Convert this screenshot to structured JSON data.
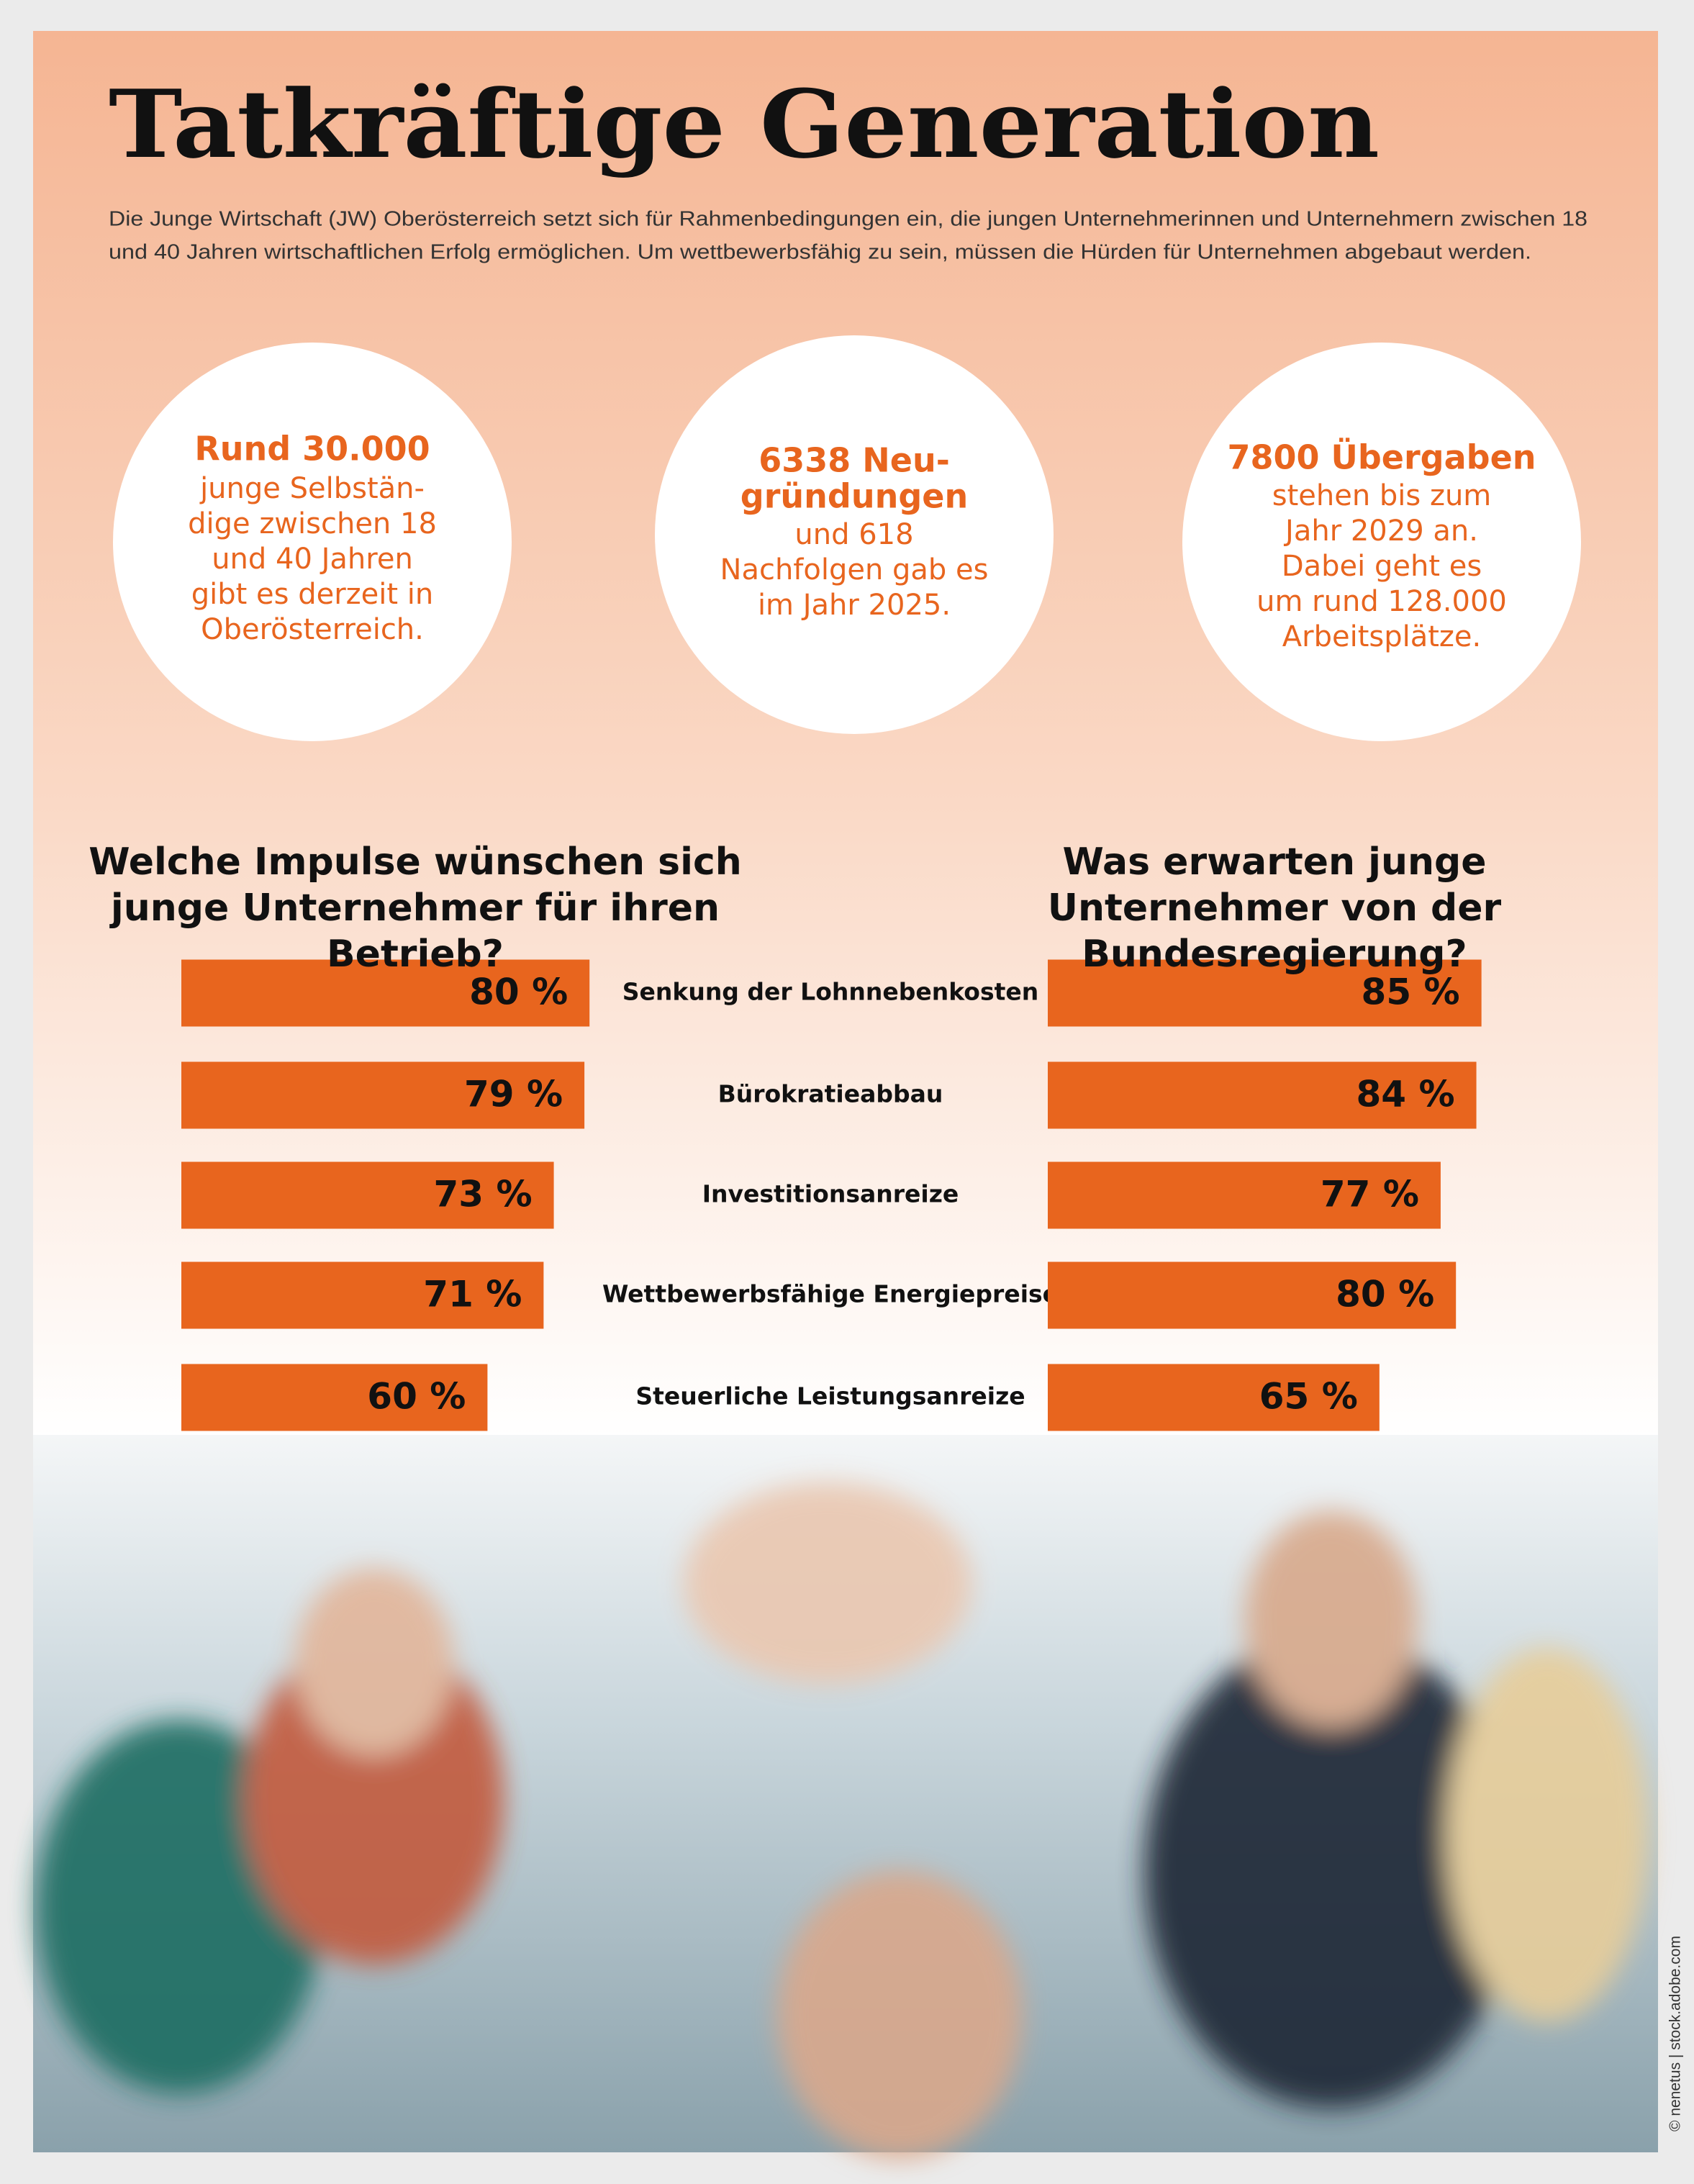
{
  "title": "Tatkräftige Generation",
  "intro": [
    "Die Junge Wirtschaft (JW) Oberösterreich setzt sich für Rahmenbedingungen ein, die jungen Unternehmerinnen und Unternehmern zwischen 18",
    "und 40 Jahren wirtschaftlichen Erfolg ermöglichen. Um wettbewerbsfähig zu sein, müssen die Hürden für Unternehmen abgebaut werden."
  ],
  "facts": [
    {
      "heading": [
        "Rund 30.000"
      ],
      "body": [
        "junge Selbstän-",
        "dige zwischen 18",
        "und 40 Jahren",
        "gibt es derzeit in",
        "Oberösterreich."
      ]
    },
    {
      "heading": [
        "6338 Neu-",
        "gründungen"
      ],
      "body": [
        "und 618",
        "Nachfolgen gab es",
        "im Jahr 2025."
      ]
    },
    {
      "heading": [
        "7800 Übergaben"
      ],
      "body": [
        "stehen bis zum",
        "Jahr 2029 an.",
        "Dabei geht es",
        "um rund 128.000",
        "Arbeitsplätze."
      ]
    }
  ],
  "chart_data": {
    "type": "bar",
    "categories": [
      "Senkung der Lohnnebenkosten",
      "Bürokratieabbau",
      "Investitionsanreize",
      "Wettbewerbsfähige Energiepreise",
      "Steuerliche Leistungsanreize"
    ],
    "series": [
      {
        "name": "Welche Impulse wünschen sich junge Unternehmer für ihren Betrieb?",
        "color": "#e8651e",
        "values": [
          80,
          79,
          73,
          71,
          60
        ],
        "value_labels": [
          "80 %",
          "79 %",
          "73 %",
          "71 %",
          "60 %"
        ]
      },
      {
        "name": "Was erwarten junge Unternehmer von der Bundesregierung?",
        "color": "#e8651e",
        "values": [
          85,
          84,
          77,
          80,
          65
        ],
        "value_labels": [
          "85 %",
          "84 %",
          "77 %",
          "80 %",
          "65 %"
        ]
      }
    ]
  },
  "photo_credit": "© nenetus | stock.adobe.com"
}
